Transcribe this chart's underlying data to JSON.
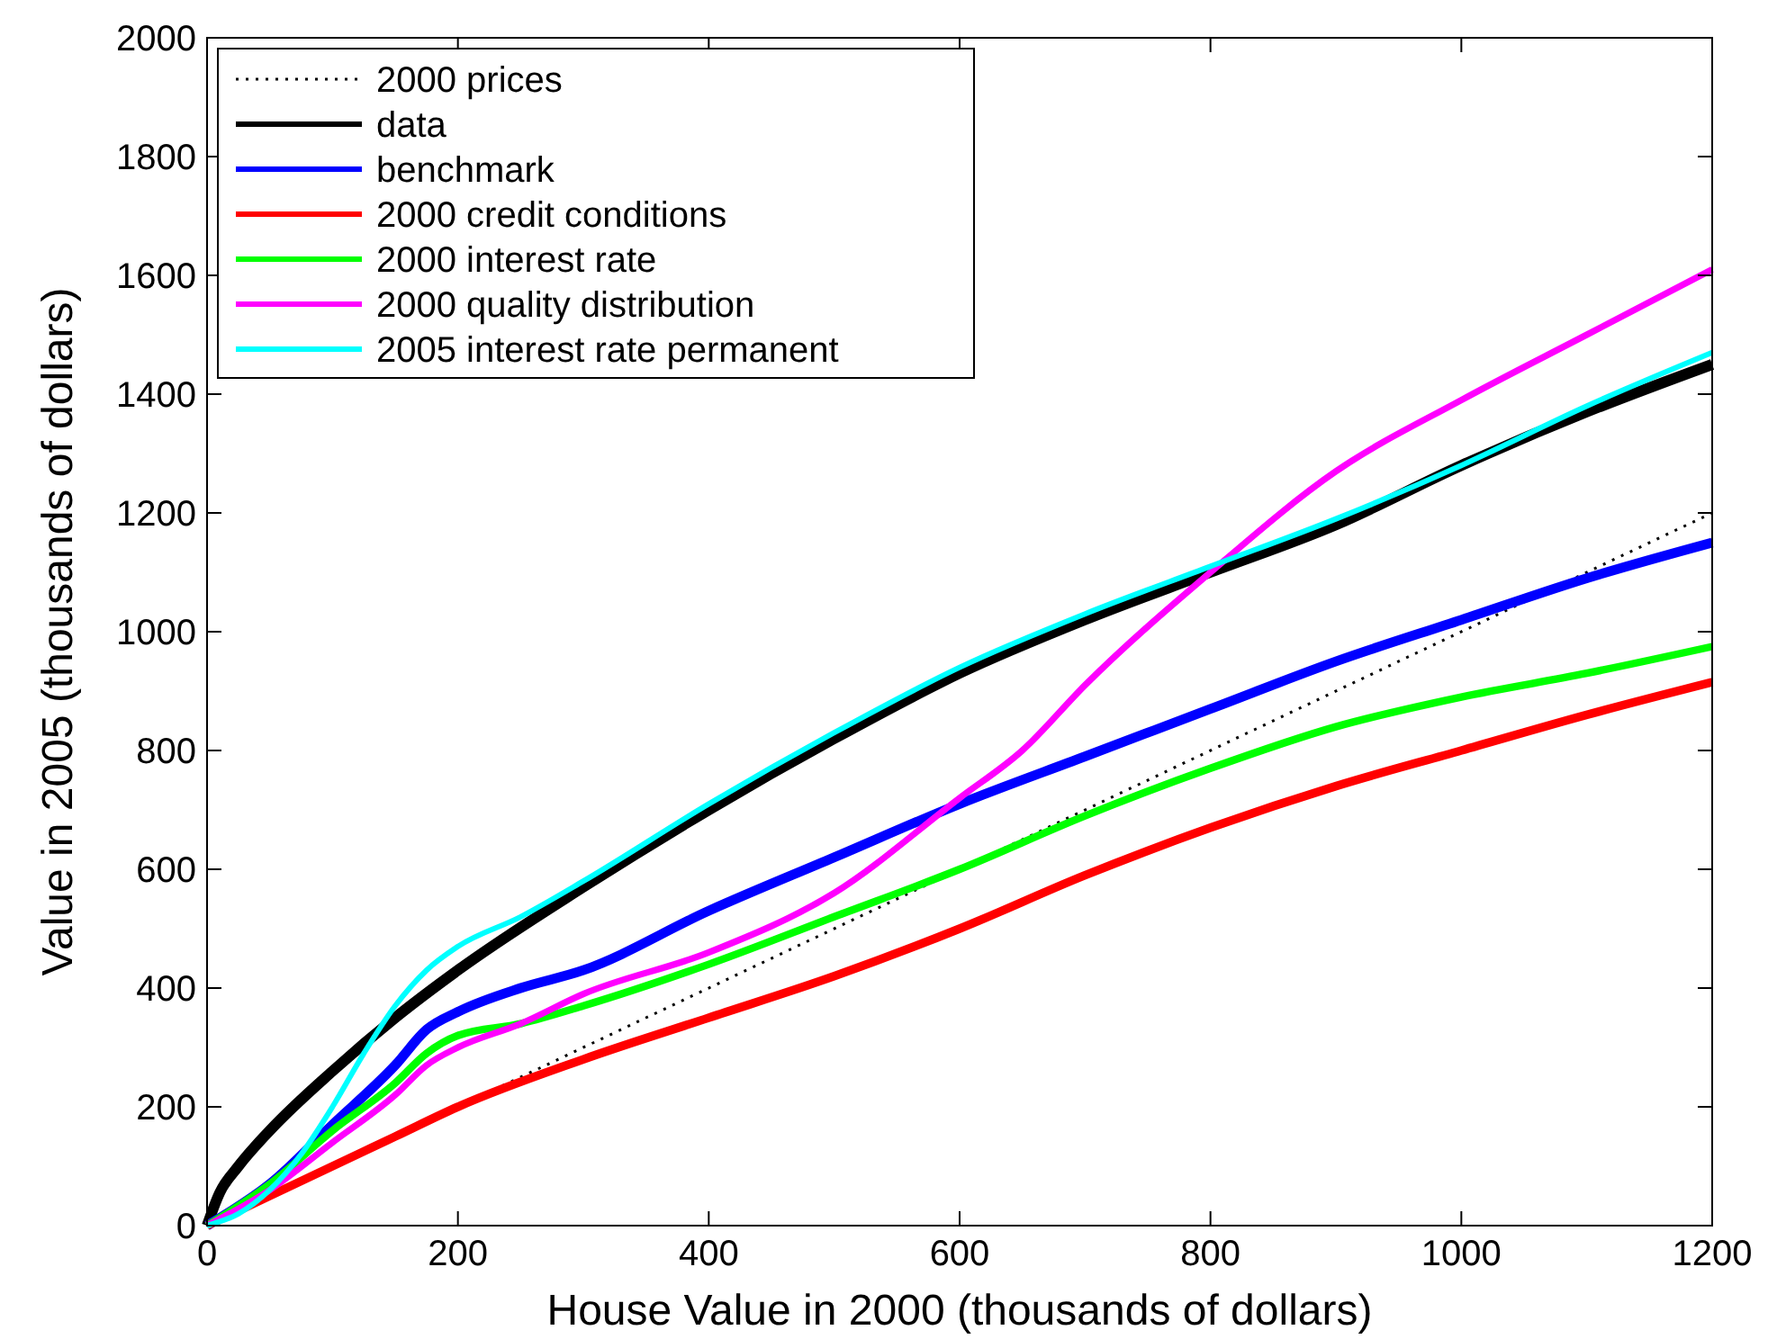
{
  "chart_data": {
    "type": "line",
    "xlabel": "House Value in 2000 (thousands of dollars)",
    "ylabel": "Value in 2005 (thousands of dollars)",
    "xlim": [
      0,
      1200
    ],
    "ylim": [
      0,
      2000
    ],
    "xticks": [
      0,
      200,
      400,
      600,
      800,
      1000,
      1200
    ],
    "yticks": [
      0,
      200,
      400,
      600,
      800,
      1000,
      1200,
      1400,
      1600,
      1800,
      2000
    ],
    "legend": "top left",
    "grid": false,
    "series": [
      {
        "name": "2000 prices",
        "color": "#000000",
        "line_style": "dotted",
        "x": [
          0,
          1200
        ],
        "values": [
          0,
          1200
        ]
      },
      {
        "name": "data",
        "color": "#000000",
        "x": [
          0,
          10,
          25,
          50,
          100,
          150,
          200,
          300,
          400,
          500,
          600,
          700,
          800,
          900,
          1000,
          1100,
          1200
        ],
        "values": [
          0,
          55,
          100,
          160,
          260,
          350,
          430,
          570,
          700,
          820,
          930,
          1020,
          1100,
          1180,
          1280,
          1370,
          1450
        ]
      },
      {
        "name": "benchmark",
        "color": "#0000ff",
        "x": [
          0,
          50,
          100,
          150,
          175,
          200,
          250,
          300,
          400,
          500,
          600,
          700,
          800,
          900,
          1000,
          1100,
          1200
        ],
        "values": [
          0,
          70,
          170,
          270,
          330,
          360,
          400,
          430,
          530,
          620,
          710,
          790,
          870,
          950,
          1020,
          1090,
          1150
        ]
      },
      {
        "name": "2000 credit conditions",
        "color": "#ff0000",
        "x": [
          0,
          50,
          100,
          150,
          200,
          300,
          400,
          500,
          600,
          700,
          800,
          900,
          1000,
          1100,
          1200
        ],
        "values": [
          0,
          50,
          100,
          150,
          200,
          280,
          350,
          420,
          500,
          590,
          670,
          740,
          800,
          860,
          915
        ]
      },
      {
        "name": "2000 interest rate",
        "color": "#00ff00",
        "x": [
          0,
          50,
          100,
          150,
          175,
          200,
          250,
          300,
          400,
          500,
          600,
          700,
          800,
          900,
          1000,
          1100,
          1200
        ],
        "values": [
          0,
          70,
          160,
          240,
          290,
          320,
          340,
          370,
          440,
          520,
          600,
          690,
          770,
          840,
          890,
          930,
          975
        ]
      },
      {
        "name": "2000 quality distribution",
        "color": "#ff00ff",
        "x": [
          0,
          50,
          100,
          150,
          175,
          200,
          250,
          300,
          400,
          500,
          600,
          650,
          700,
          800,
          900,
          1000,
          1100,
          1200
        ],
        "values": [
          0,
          60,
          140,
          220,
          270,
          300,
          340,
          390,
          460,
          560,
          720,
          800,
          910,
          1100,
          1270,
          1390,
          1500,
          1610
        ]
      },
      {
        "name": "2005 interest rate permanent",
        "color": "#00ffff",
        "x": [
          0,
          25,
          50,
          75,
          100,
          125,
          150,
          175,
          200,
          250,
          300,
          400,
          500,
          600,
          700,
          800,
          900,
          1000,
          1100,
          1200
        ],
        "values": [
          0,
          20,
          60,
          120,
          200,
          290,
          370,
          430,
          470,
          520,
          580,
          710,
          830,
          940,
          1030,
          1110,
          1190,
          1280,
          1380,
          1470
        ]
      }
    ]
  }
}
